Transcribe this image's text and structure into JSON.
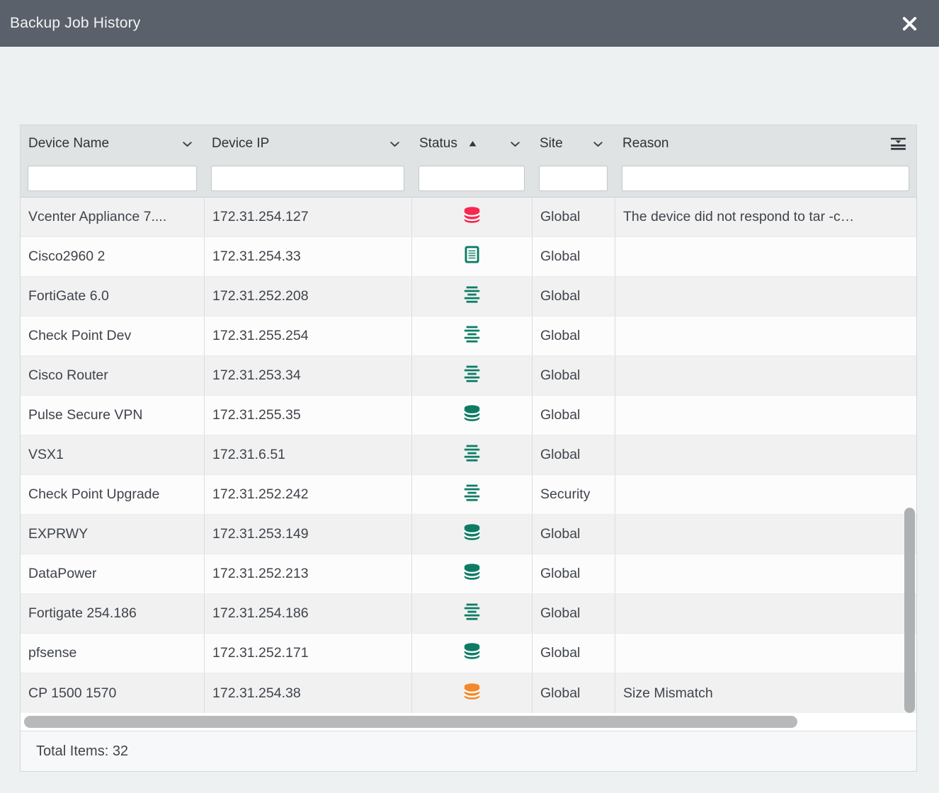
{
  "titlebar": {
    "title": "Backup Job History"
  },
  "colors": {
    "titlebar_bg": "#5b616b",
    "header_bg": "#dfe3e4",
    "status_red": "#f8284e",
    "status_green": "#0e7c64",
    "status_orange": "#f28a2d"
  },
  "table": {
    "columns": [
      {
        "key": "device_name",
        "label": "Device Name",
        "has_menu": true,
        "sorted": null,
        "filter_value": "",
        "filter_placeholder": ""
      },
      {
        "key": "device_ip",
        "label": "Device IP",
        "has_menu": true,
        "sorted": null,
        "filter_value": "",
        "filter_placeholder": ""
      },
      {
        "key": "status",
        "label": "Status",
        "has_menu": true,
        "sorted": "asc",
        "filter_value": "",
        "filter_placeholder": ""
      },
      {
        "key": "site",
        "label": "Site",
        "has_menu": true,
        "sorted": null,
        "filter_value": "",
        "filter_placeholder": ""
      },
      {
        "key": "reason",
        "label": "Reason",
        "has_menu": false,
        "sorted": null,
        "filter_value": "",
        "filter_placeholder": ""
      }
    ],
    "status_icons": {
      "database-red": {
        "shape": "database",
        "color": "#f8284e"
      },
      "database-green": {
        "shape": "database",
        "color": "#0e7c64"
      },
      "database-orange": {
        "shape": "database",
        "color": "#f28a2d"
      },
      "document-green": {
        "shape": "document",
        "color": "#0e7c64"
      },
      "lines-green": {
        "shape": "lines",
        "color": "#0e7c64"
      }
    },
    "rows": [
      {
        "device_name": "Vcenter Appliance 7....",
        "device_ip": "172.31.254.127",
        "status_icon": "database-red",
        "site": "Global",
        "reason": "The device did not respond to tar -c…"
      },
      {
        "device_name": "Cisco2960 2",
        "device_ip": "172.31.254.33",
        "status_icon": "document-green",
        "site": "Global",
        "reason": ""
      },
      {
        "device_name": "FortiGate 6.0",
        "device_ip": "172.31.252.208",
        "status_icon": "lines-green",
        "site": "Global",
        "reason": ""
      },
      {
        "device_name": "Check Point Dev",
        "device_ip": "172.31.255.254",
        "status_icon": "lines-green",
        "site": "Global",
        "reason": ""
      },
      {
        "device_name": "Cisco Router",
        "device_ip": "172.31.253.34",
        "status_icon": "lines-green",
        "site": "Global",
        "reason": ""
      },
      {
        "device_name": "Pulse Secure VPN",
        "device_ip": "172.31.255.35",
        "status_icon": "database-green",
        "site": "Global",
        "reason": ""
      },
      {
        "device_name": "VSX1",
        "device_ip": "172.31.6.51",
        "status_icon": "lines-green",
        "site": "Global",
        "reason": ""
      },
      {
        "device_name": "Check Point Upgrade",
        "device_ip": "172.31.252.242",
        "status_icon": "lines-green",
        "site": "Security",
        "reason": ""
      },
      {
        "device_name": "EXPRWY",
        "device_ip": "172.31.253.149",
        "status_icon": "database-green",
        "site": "Global",
        "reason": ""
      },
      {
        "device_name": "DataPower",
        "device_ip": "172.31.252.213",
        "status_icon": "database-green",
        "site": "Global",
        "reason": ""
      },
      {
        "device_name": "Fortigate 254.186",
        "device_ip": "172.31.254.186",
        "status_icon": "lines-green",
        "site": "Global",
        "reason": ""
      },
      {
        "device_name": "pfsense",
        "device_ip": "172.31.252.171",
        "status_icon": "database-green",
        "site": "Global",
        "reason": ""
      },
      {
        "device_name": "CP 1500 1570",
        "device_ip": "172.31.254.38",
        "status_icon": "database-orange",
        "site": "Global",
        "reason": "Size Mismatch"
      }
    ],
    "footer": {
      "total_items": "Total Items: 32"
    }
  }
}
